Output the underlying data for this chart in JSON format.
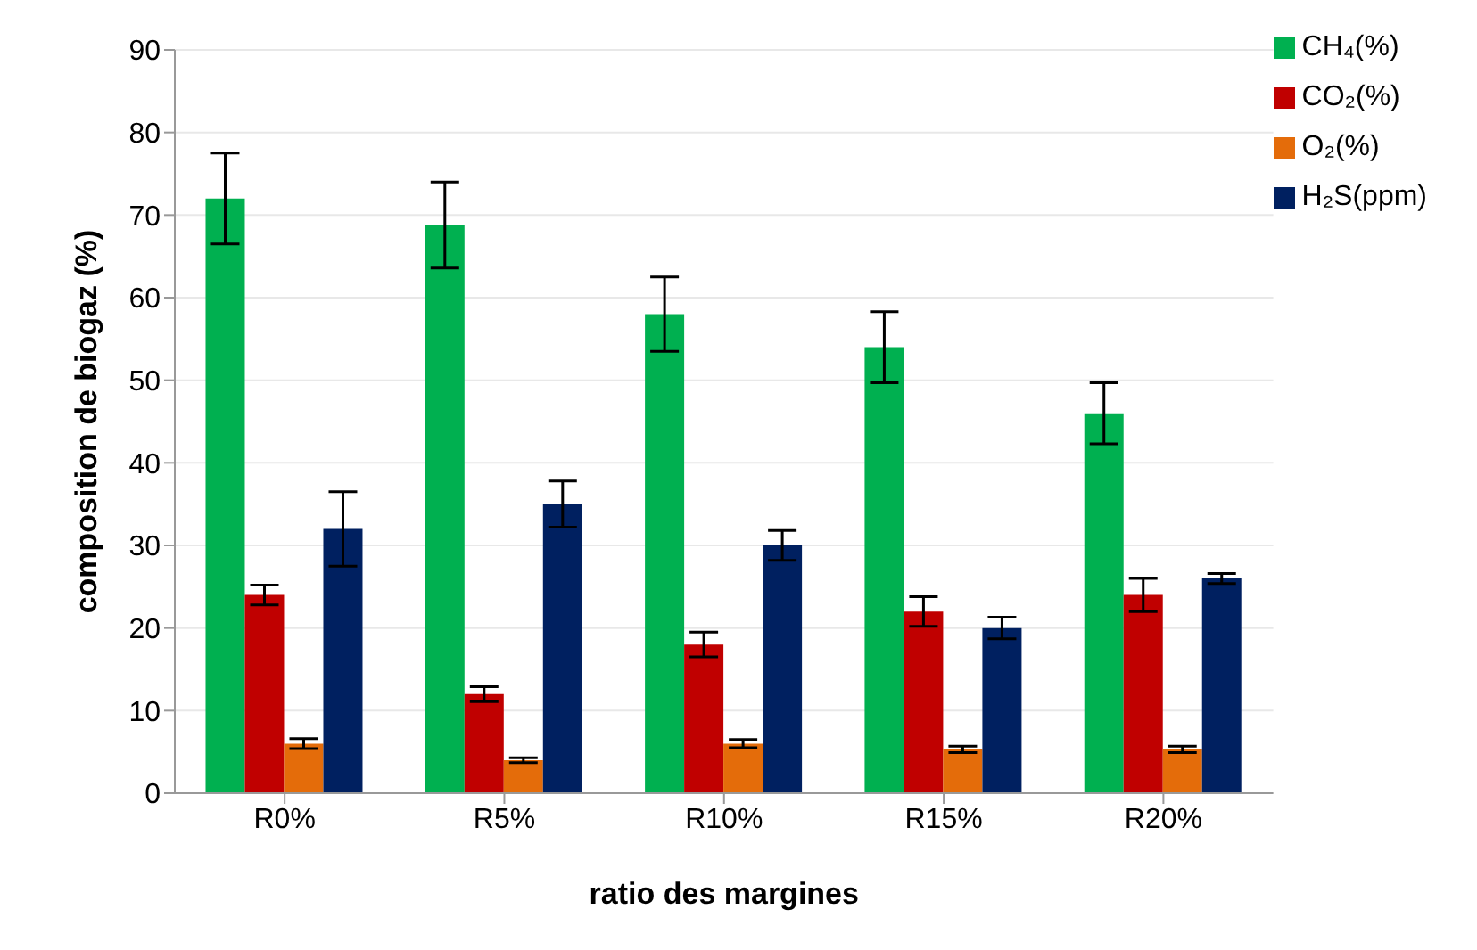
{
  "chart_data": {
    "type": "bar",
    "xlabel": "ratio des margines",
    "ylabel": "composition de biogaz (%)",
    "categories": [
      "R0%",
      "R5%",
      "R10%",
      "R15%",
      "R20%"
    ],
    "series": [
      {
        "name": "CH₄(%)",
        "color": "#00b050",
        "values": [
          72,
          68.8,
          58,
          54,
          46
        ],
        "errors": [
          5.5,
          5.2,
          4.5,
          4.3,
          3.7
        ]
      },
      {
        "name": "CO₂(%)",
        "color": "#c00000",
        "values": [
          24,
          12,
          18,
          22,
          24
        ],
        "errors": [
          1.2,
          0.9,
          1.5,
          1.8,
          2
        ]
      },
      {
        "name": "O₂(%)",
        "color": "#e46c0a",
        "values": [
          6,
          4,
          6,
          5.3,
          5.3
        ],
        "errors": [
          0.6,
          0.3,
          0.5,
          0.4,
          0.4
        ]
      },
      {
        "name": "H₂S(ppm)",
        "color": "#002060",
        "values": [
          32,
          35,
          30,
          20,
          26
        ],
        "errors": [
          4.5,
          2.8,
          1.8,
          1.3,
          0.6
        ]
      }
    ],
    "ylim": [
      0,
      90
    ],
    "yticks": [
      0,
      10,
      20,
      30,
      40,
      50,
      60,
      70,
      80,
      90
    ],
    "grid": "y",
    "legend": "top right"
  }
}
